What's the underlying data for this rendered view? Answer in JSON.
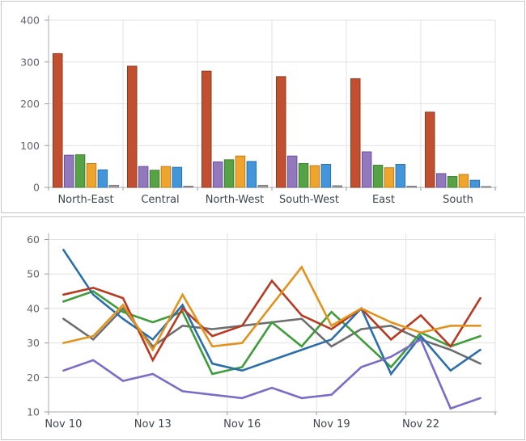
{
  "chart_data": [
    {
      "type": "bar",
      "title": "",
      "categories": [
        "North-East",
        "Central",
        "North-West",
        "South-West",
        "East",
        "South"
      ],
      "series": [
        {
          "name": "red",
          "fill": "#C0502F",
          "stroke": "#8F3A1F",
          "values": [
            320,
            290,
            278,
            265,
            260,
            180
          ]
        },
        {
          "name": "purple",
          "fill": "#9478BE",
          "stroke": "#67519E",
          "values": [
            77,
            50,
            61,
            75,
            85,
            33
          ]
        },
        {
          "name": "green",
          "fill": "#55A344",
          "stroke": "#3C7E2F",
          "values": [
            78,
            41,
            66,
            57,
            53,
            26
          ]
        },
        {
          "name": "orange",
          "fill": "#EEA42D",
          "stroke": "#BE7E13",
          "values": [
            57,
            50,
            75,
            52,
            47,
            31
          ]
        },
        {
          "name": "blue",
          "fill": "#4496DB",
          "stroke": "#2A70B0",
          "values": [
            42,
            48,
            62,
            55,
            55,
            17
          ]
        },
        {
          "name": "gray",
          "fill": "#9EA0A3",
          "stroke": "#7C7E81",
          "values": [
            5,
            3,
            5,
            4,
            3,
            2
          ]
        }
      ],
      "ylim": [
        0,
        400
      ],
      "yticks": [
        0,
        100,
        200,
        300,
        400
      ],
      "grid": true,
      "legend": "none"
    },
    {
      "type": "line",
      "title": "",
      "x": [
        "Nov 10",
        "Nov 11",
        "Nov 12",
        "Nov 13",
        "Nov 14",
        "Nov 15",
        "Nov 16",
        "Nov 17",
        "Nov 18",
        "Nov 19",
        "Nov 20",
        "Nov 21",
        "Nov 22",
        "Nov 23",
        "Nov 24"
      ],
      "x_tick_labels": [
        "Nov 10",
        "Nov 13",
        "Nov 16",
        "Nov 19",
        "Nov 22"
      ],
      "x_tick_every": 3,
      "series": [
        {
          "name": "gray",
          "color": "#6E6E70",
          "values": [
            37,
            31,
            40,
            29,
            35,
            34,
            35,
            36,
            37,
            29,
            34,
            35,
            31,
            28,
            24
          ]
        },
        {
          "name": "green",
          "color": "#3E9C39",
          "values": [
            42,
            45,
            39,
            36,
            39,
            21,
            23,
            36,
            29,
            39,
            31,
            23,
            33,
            29,
            32
          ]
        },
        {
          "name": "blue",
          "color": "#2A6EAC",
          "values": [
            57,
            44,
            37,
            31,
            41,
            24,
            22,
            25,
            28,
            31,
            40,
            21,
            32,
            22,
            28
          ]
        },
        {
          "name": "red",
          "color": "#B73A21",
          "values": [
            44,
            46,
            43,
            25,
            40,
            32,
            35,
            48,
            38,
            34,
            40,
            31,
            38,
            29,
            43
          ]
        },
        {
          "name": "orange",
          "color": "#E2931D",
          "values": [
            30,
            32,
            41,
            28,
            44,
            29,
            30,
            41,
            52,
            35,
            40,
            36,
            33,
            35,
            35
          ]
        },
        {
          "name": "purple",
          "color": "#7D6BC9",
          "values": [
            22,
            25,
            19,
            21,
            16,
            15,
            14,
            17,
            14,
            15,
            23,
            26,
            31,
            11,
            14
          ]
        }
      ],
      "ylim": [
        10,
        60
      ],
      "yticks": [
        10,
        20,
        30,
        40,
        50,
        60
      ],
      "grid": true,
      "legend": "none"
    }
  ],
  "style": {
    "grid_color": "#E2E2E2",
    "axis_color": "#ACACAC",
    "tick_color": "#9B9B9B",
    "value_label_color": "#63636D",
    "category_label_color": "#3E454E"
  }
}
